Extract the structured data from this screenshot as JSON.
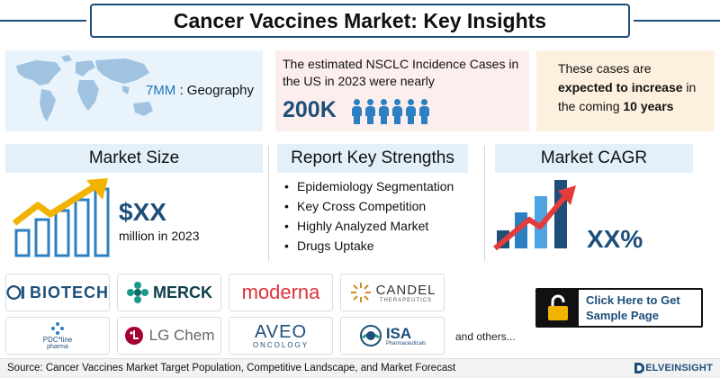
{
  "header": {
    "title": "Cancer Vaccines Market: Key Insights"
  },
  "geography": {
    "accent": "7MM",
    "label": " : Geography"
  },
  "incidence": {
    "text": "The estimated NSCLC Incidence Cases in the US in 2023 were nearly",
    "value": "200K",
    "icon": "people-icon"
  },
  "cases": {
    "pre": "These cases are ",
    "bold1": "expected to increase",
    "mid": " in the coming ",
    "bold2": "10 years"
  },
  "market_size": {
    "heading": "Market Size",
    "value": "$XX",
    "sub": "million in 2023"
  },
  "strengths": {
    "heading": "Report Key Strengths",
    "items": [
      "Epidemiology Segmentation",
      "Key Cross Competition",
      "Highly Analyzed Market",
      "Drugs Uptake"
    ]
  },
  "cagr": {
    "heading": "Market CAGR",
    "value": "XX%"
  },
  "companies": {
    "row1": [
      "BIOTECH",
      "MERCK",
      "moderna",
      "CANDEL",
      "THERAPEUTICS"
    ],
    "row2": [
      "PDC*line",
      "pharma",
      "LG Chem",
      "AVEO",
      "ONCOLOGY",
      "ISA",
      "Pharmaceuticals"
    ],
    "others": "and others..."
  },
  "cta": {
    "line1": "Click Here to Get",
    "line2": "Sample Page"
  },
  "footer": {
    "source": "Source: Cancer Vaccines Market Target Population, Competitive Landscape, and Market Forecast",
    "brand": "ELVEINSIGHT"
  },
  "colors": {
    "navy": "#1d4f7a",
    "blue": "#2b7fc3",
    "red": "#e43c3c",
    "gold": "#f2b200",
    "pink_bg": "#fdeeee",
    "peach_bg": "#fdf0de",
    "light_blue_bg": "#e8f3fb"
  }
}
